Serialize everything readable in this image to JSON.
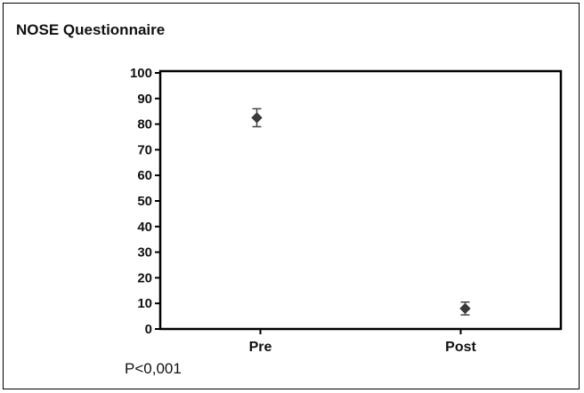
{
  "title": "NOSE Questionnaire",
  "footnote": "P<0,001",
  "chart_data": {
    "type": "scatter",
    "categories": [
      "Pre",
      "Post"
    ],
    "series": [
      {
        "values": [
          82.5,
          8
        ],
        "error_upper": [
          86,
          10.5
        ],
        "error_lower": [
          79,
          5.5
        ]
      }
    ],
    "ylim": [
      0,
      100
    ],
    "yticks": [
      0,
      10,
      20,
      30,
      40,
      50,
      60,
      70,
      80,
      90,
      100
    ],
    "grid": false,
    "marker": "diamond",
    "colors": {
      "marker": "#3a3a3a",
      "axis": "#000000"
    }
  }
}
